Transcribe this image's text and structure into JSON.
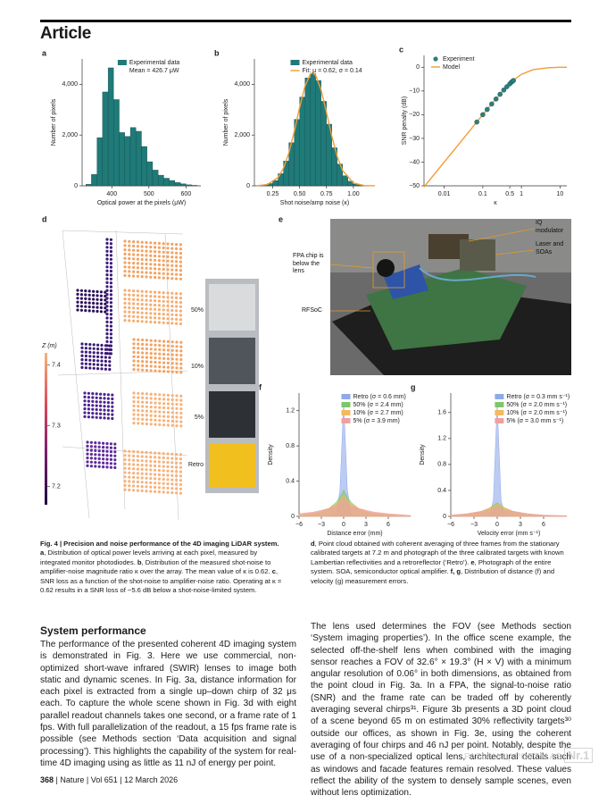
{
  "header": {
    "title": "Article"
  },
  "chart_data": [
    {
      "type": "histogram",
      "panel": "a",
      "name": "Experimental data",
      "annotation": "Mean = 426.7 μW",
      "color": "#1f7a78",
      "xlabel": "Optical power at the pixels (μW)",
      "ylabel": "Number of pixels",
      "bins": [
        330,
        345,
        360,
        375,
        390,
        405,
        420,
        435,
        450,
        465,
        480,
        495,
        510,
        525,
        540,
        555,
        570,
        585,
        600,
        615,
        630
      ],
      "counts": [
        60,
        450,
        1900,
        3700,
        4650,
        3400,
        2100,
        1950,
        2300,
        2150,
        1550,
        950,
        620,
        420,
        300,
        210,
        130,
        80,
        40,
        20
      ],
      "xlim": [
        320,
        640
      ],
      "xticks": [
        400,
        500,
        600
      ],
      "ylim": [
        0,
        5000
      ],
      "yticks": [
        0,
        {
          "value": 2000,
          "label": "2,000"
        },
        {
          "value": 4000,
          "label": "4,000"
        }
      ],
      "legend": "upper right"
    },
    {
      "type": "histogram",
      "panel": "b",
      "name": "Experimental data",
      "color": "#1f7a78",
      "xlabel": "Shot noise/amp noise (κ)",
      "ylabel": "Number of pixels",
      "bins": [
        0.1,
        0.15,
        0.2,
        0.25,
        0.3,
        0.35,
        0.4,
        0.45,
        0.5,
        0.55,
        0.6,
        0.65,
        0.7,
        0.75,
        0.8,
        0.85,
        0.9,
        0.95,
        1,
        1.05,
        1.1,
        1.15,
        1.2
      ],
      "counts": [
        10,
        30,
        90,
        210,
        480,
        980,
        1700,
        2620,
        3500,
        4250,
        4420,
        4150,
        3330,
        2430,
        1500,
        860,
        400,
        180,
        70,
        25,
        8,
        3
      ],
      "series": [
        {
          "name": "Fit: μ = 0.62, σ = 0.14",
          "color": "#f39c34",
          "x": [
            0.1,
            0.2,
            0.3,
            0.35,
            0.4,
            0.45,
            0.5,
            0.55,
            0.6,
            0.62,
            0.65,
            0.7,
            0.75,
            0.8,
            0.85,
            0.9,
            1,
            1.1,
            1.2
          ],
          "values": [
            4,
            49,
            327,
            693,
            1295,
            2130,
            3083,
            3927,
            4405,
            4450,
            4349,
            3778,
            2891,
            1946,
            1153,
            602,
            112,
            12,
            1
          ]
        }
      ],
      "xlim": [
        0.08,
        1.2
      ],
      "xticks": [
        0.25,
        {
          "value": 0.5,
          "label": "0.50"
        },
        0.75,
        {
          "value": 1,
          "label": "1.00"
        }
      ],
      "ylim": [
        0,
        5000
      ],
      "yticks": [
        0,
        {
          "value": 2000,
          "label": "2,000"
        },
        {
          "value": 4000,
          "label": "4,000"
        }
      ],
      "legend": "upper right"
    },
    {
      "type": "line",
      "panel": "c",
      "xlabel": "κ",
      "ylabel": "SNR penalty (dB)",
      "xlog": true,
      "series": [
        {
          "name": "Experiment",
          "color": "#2a7f7f",
          "marker": true,
          "x": [
            0.07,
            0.1,
            0.13,
            0.17,
            0.22,
            0.28,
            0.35,
            0.42,
            0.5,
            0.55,
            0.6,
            0.62
          ],
          "values": [
            -23.1,
            -20,
            -17.8,
            -15.5,
            -13.4,
            -11.4,
            -9.6,
            -8.2,
            -7,
            -6.3,
            -5.8,
            -5.6
          ]
        },
        {
          "name": "Model",
          "color": "#f39c34",
          "x": [
            0.003,
            0.005,
            0.01,
            0.02,
            0.05,
            0.1,
            0.2,
            0.3,
            0.5,
            0.7,
            1,
            2,
            5,
            10,
            15
          ],
          "values": [
            -50.5,
            -46,
            -40,
            -34,
            -26,
            -20,
            -14.1,
            -10.8,
            -7,
            -4.8,
            -3,
            -1,
            -0.2,
            0,
            0
          ]
        }
      ],
      "xlim": [
        0.003,
        15
      ],
      "xticks": [
        0.01,
        0.1,
        0.5,
        1,
        10
      ],
      "ylim": [
        -50,
        5
      ],
      "yticks": [
        0,
        {
          "value": -10,
          "label": "−10"
        },
        {
          "value": -20,
          "label": "−20"
        },
        {
          "value": -30,
          "label": "−30"
        },
        {
          "value": -40,
          "label": "−40"
        },
        {
          "value": -50,
          "label": "−50"
        }
      ],
      "legend": "upper left"
    },
    {
      "type": "area",
      "panel": "f",
      "xlabel": "Distance error (mm)",
      "ylabel": "Density",
      "x": [
        -6,
        -4,
        -3,
        -2,
        -1,
        -0.5,
        0,
        0.5,
        1,
        2,
        3,
        4,
        6,
        9
      ],
      "series": [
        {
          "name": "Retro (σ = 0.6 mm)",
          "color": "#8fa9ea",
          "values": [
            0,
            0,
            0,
            0,
            0.02,
            0.3,
            1.3,
            0.3,
            0.02,
            0,
            0,
            0,
            0,
            0
          ]
        },
        {
          "name": "50% (σ = 2.4 mm)",
          "color": "#7cc76b",
          "values": [
            0.01,
            0.03,
            0.05,
            0.09,
            0.16,
            0.22,
            0.3,
            0.22,
            0.16,
            0.09,
            0.05,
            0.03,
            0.01,
            0
          ]
        },
        {
          "name": "10% (σ = 2.7 mm)",
          "color": "#f4b860",
          "values": [
            0.02,
            0.04,
            0.06,
            0.09,
            0.14,
            0.19,
            0.24,
            0.19,
            0.14,
            0.09,
            0.06,
            0.04,
            0.02,
            0.005
          ]
        },
        {
          "name": "5% (σ = 3.9 mm)",
          "color": "#f0a0a0",
          "values": [
            0.03,
            0.05,
            0.07,
            0.09,
            0.12,
            0.16,
            0.2,
            0.16,
            0.12,
            0.09,
            0.07,
            0.05,
            0.03,
            0.01
          ]
        }
      ],
      "xlim": [
        -6,
        9
      ],
      "xticks": [
        {
          "value": -6,
          "label": "−6"
        },
        {
          "value": -3,
          "label": "−3"
        },
        0,
        3,
        6
      ],
      "ylim": [
        0,
        1.4
      ],
      "yticks": [
        0,
        0.4,
        0.8,
        1.2
      ],
      "legend": "upper right"
    },
    {
      "type": "area",
      "panel": "g",
      "xlabel": "Velocity error (mm s⁻¹)",
      "ylabel": "Density",
      "x": [
        -6,
        -4,
        -3,
        -2,
        -1,
        -0.5,
        0,
        0.5,
        1,
        2,
        3,
        4,
        6,
        9
      ],
      "series": [
        {
          "name": "Retro (σ = 0.3 mm s⁻¹)",
          "color": "#8fa9ea",
          "values": [
            0,
            0,
            0,
            0,
            0.01,
            0.25,
            1.75,
            0.25,
            0.01,
            0,
            0,
            0,
            0,
            0
          ]
        },
        {
          "name": "50% (σ = 2.0 mm s⁻¹)",
          "color": "#7cc76b",
          "values": [
            0.01,
            0.03,
            0.05,
            0.08,
            0.13,
            0.17,
            0.21,
            0.17,
            0.13,
            0.08,
            0.05,
            0.03,
            0.01,
            0
          ]
        },
        {
          "name": "10% (σ = 2.0 mm s⁻¹)",
          "color": "#f4b860",
          "values": [
            0.01,
            0.03,
            0.05,
            0.08,
            0.13,
            0.16,
            0.2,
            0.16,
            0.13,
            0.08,
            0.05,
            0.03,
            0.01,
            0
          ]
        },
        {
          "name": "5% (σ = 3.0 mm s⁻¹)",
          "color": "#f0a0a0",
          "values": [
            0.02,
            0.04,
            0.06,
            0.08,
            0.1,
            0.12,
            0.14,
            0.12,
            0.1,
            0.08,
            0.06,
            0.04,
            0.02,
            0.01
          ]
        }
      ],
      "xlim": [
        -6,
        9
      ],
      "xticks": [
        {
          "value": -6,
          "label": "−6"
        },
        {
          "value": -3,
          "label": "−3"
        },
        0,
        3,
        6
      ],
      "ylim": [
        0,
        1.9
      ],
      "yticks": [
        0,
        0.4,
        0.8,
        1.2,
        1.6
      ],
      "legend": "upper right"
    }
  ],
  "panel_d": {
    "letter": "d",
    "colorbar_label": "Z (m)",
    "zlim": [
      7.17,
      7.42
    ],
    "zticks": [
      7.2,
      7.3,
      7.4
    ],
    "targets": [
      "50%",
      "10%",
      "5%",
      "Retro"
    ]
  },
  "panel_e": {
    "letter": "e",
    "labels": [
      "IQ modulator",
      "Laser and SOAs",
      "FPA chip is below the lens",
      "RFSoC"
    ]
  },
  "caption": {
    "title": "Fig. 4 | Precision and noise performance of the 4D imaging LiDAR system.",
    "left": [
      {
        "letter": "a",
        "text": ", Distribution of optical power levels arriving at each pixel, measured by integrated monitor photodiodes. "
      },
      {
        "letter": "b",
        "text": ", Distribution of the measured shot-noise to amplifier-noise magnitude ratio κ over the array. The mean value of κ is 0.62. "
      },
      {
        "letter": "c",
        "text": ", SNR loss as a function of the shot-noise to amplifier-noise ratio. Operating at κ = 0.62 results in a SNR loss of −5.6 dB below a shot-noise-limited system."
      }
    ],
    "right": [
      {
        "letter": "d",
        "text": ", Point cloud obtained with coherent averaging of three frames from the stationary calibrated targets at 7.2 m and photograph of the three calibrated targets with known Lambertian reflectivities and a retroreflector (‘Retro’). "
      },
      {
        "letter": "e",
        "text": ", Photograph of the entire system. SOA, semiconductor optical amplifier. "
      },
      {
        "letter": "f, g",
        "text": ", Distribution of distance (f) and velocity (g) measurement errors."
      }
    ]
  },
  "body": {
    "heading": "System performance",
    "left": "The performance of the presented coherent 4D imaging system is demonstrated in Fig. 3. Here we use commercial, non-optimized short-wave infrared (SWIR) lenses to image both static and dynamic scenes. In Fig. 3a, distance information for each pixel is extracted from a single up–down chirp of 32 μs each. To capture the whole scene shown in Fig. 3d with eight parallel readout channels takes one second, or a frame rate of 1 fps. With full parallelization of the readout, a 15 fps frame rate is possible (see Methods section ‘Data acquisition and signal processing’). This highlights the capability of the system for real-time 4D imaging using as little as 11 nJ of energy per point.",
    "right": "The lens used determines the FOV (see Methods section ‘System imaging properties’). In the office scene example, the selected off-the-shelf lens when combined with the imaging sensor reaches a FOV of 32.6° × 19.3° (H × V) with a minimum angular resolution of 0.06° in both dimensions, as obtained from the point cloud in Fig. 3a. In a FPA, the signal-to-noise ratio (SNR) and the frame rate can be traded off by coherently averaging several chirps³¹. Figure 3b presents a 3D point cloud of a scene beyond 65 m on estimated 30% reflectivity targets³⁰ outside our offices, as shown in Fig. 3e, using the coherent averaging of four chirps and 46 nJ per point. Notably, despite the use of a non-specialized optical lens, architectural details such as windows and facade features remain resolved. These values reflect the ability of the system to densely sample scenes, even without lens optimization."
  },
  "footer": {
    "page": "368",
    "journal": "Nature",
    "volume": "Vol 651",
    "date": "12 March 2026"
  },
  "watermark": {
    "text": "PASLAUGŲ PORTALAS",
    "badge": "Nr.1"
  }
}
